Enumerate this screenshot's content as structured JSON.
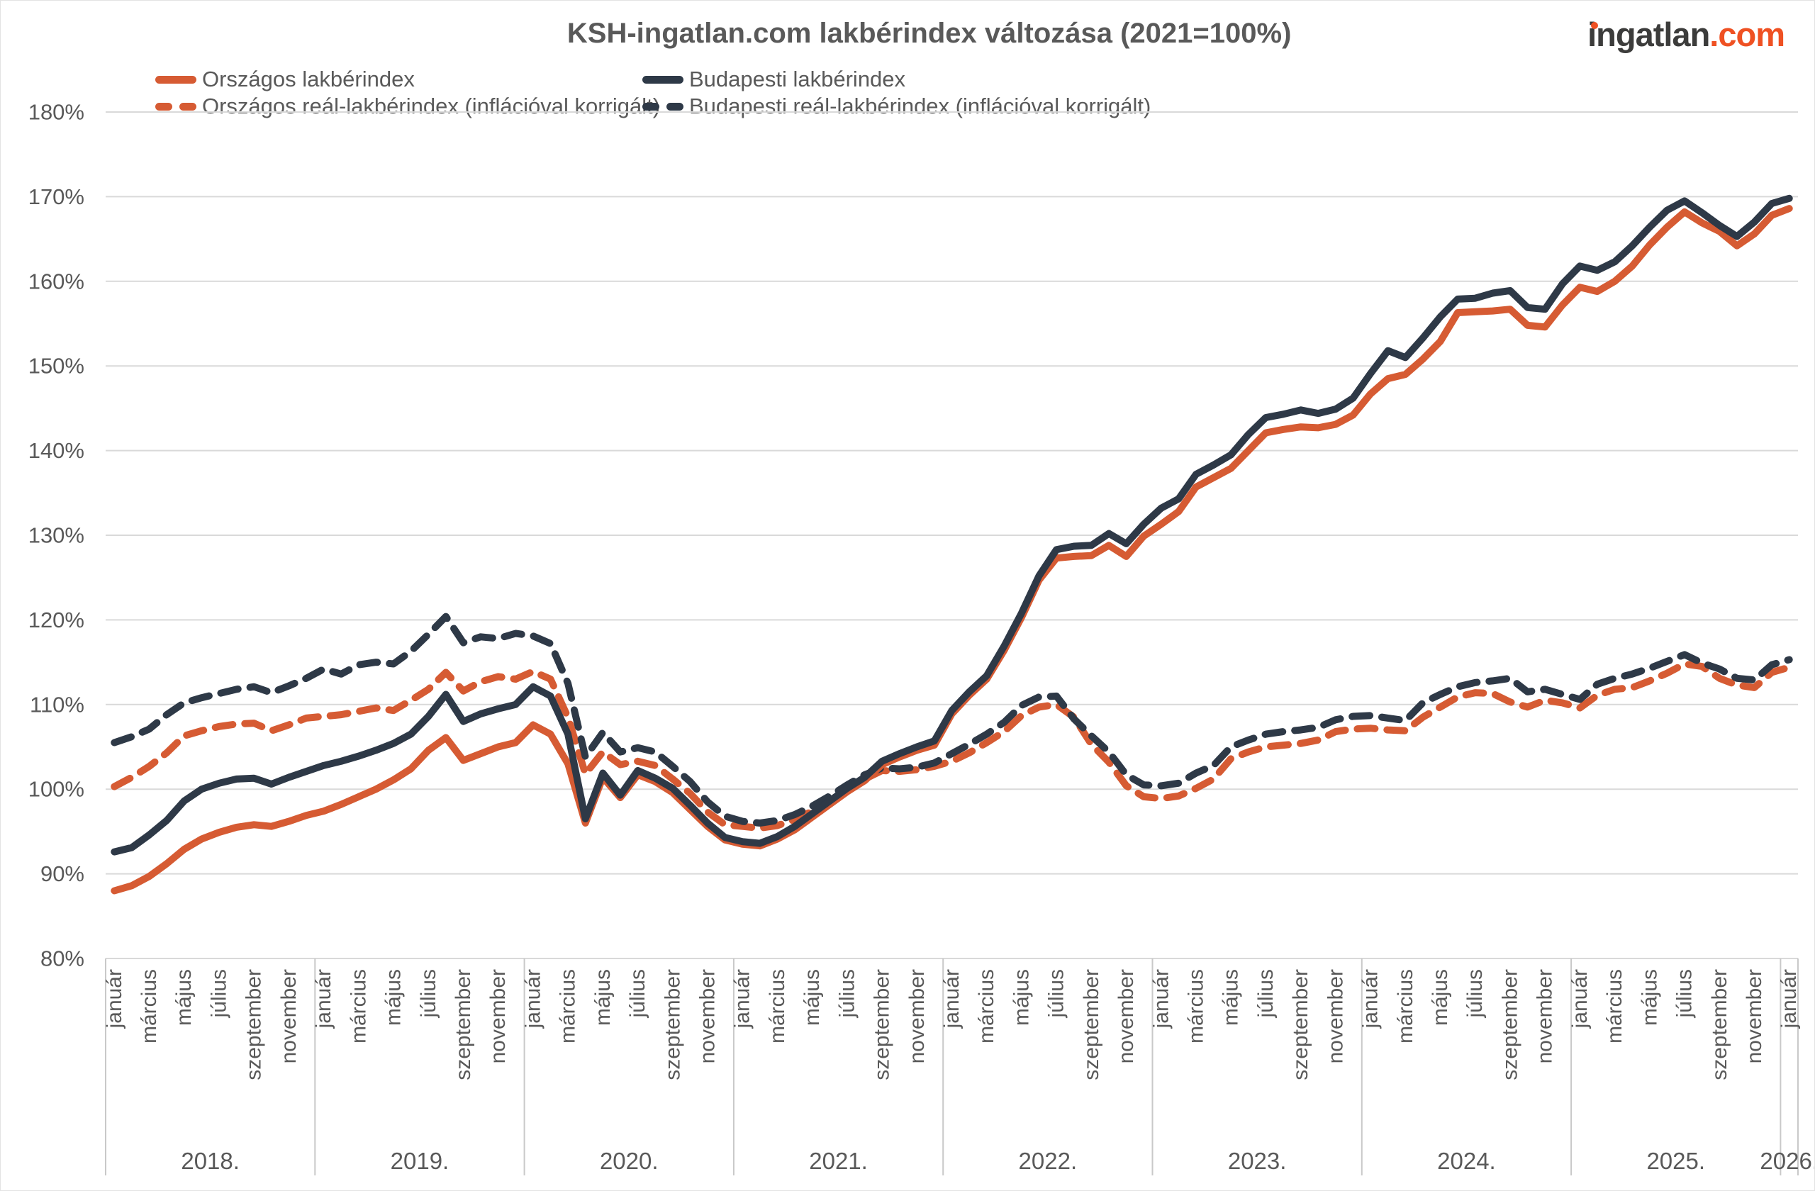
{
  "logo": {
    "name": "ingatlan",
    "tld": ".com"
  },
  "colors": {
    "orange": "#d65b33",
    "navy": "#2e3947",
    "logo_dark": "#3c3c3b",
    "logo_orange": "#ef5123",
    "grid": "#d9d9d9",
    "separator": "#c9c9c9",
    "axis_text": "#595959"
  },
  "legend": [
    {
      "id": "orszagos",
      "label": "Országos lakbérindex",
      "color": "orange",
      "dashed": false
    },
    {
      "id": "orszagos-real",
      "label": "Országos reál-lakbérindex (inflációval korrigált)",
      "color": "orange",
      "dashed": true
    },
    {
      "id": "budapesti",
      "label": "Budapesti lakbérindex",
      "color": "navy",
      "dashed": false
    },
    {
      "id": "budapesti-real",
      "label": "Budapesti reál-lakbérindex (inflációval korrigált)",
      "color": "navy",
      "dashed": true
    }
  ],
  "chart_data": {
    "type": "line",
    "title": "KSH-ingatlan.com lakbérindex változása (2021=100%)",
    "x_start": "2018-01",
    "x_end": "2026-01",
    "n_months": 97,
    "ylim": [
      80,
      180
    ],
    "y_ticks": [
      {
        "value": 180,
        "label": "180%"
      },
      {
        "value": 170,
        "label": "170%"
      },
      {
        "value": 160,
        "label": "160%"
      },
      {
        "value": 150,
        "label": "150%"
      },
      {
        "value": 140,
        "label": "140%"
      },
      {
        "value": 130,
        "label": "130%"
      },
      {
        "value": 120,
        "label": "120%"
      },
      {
        "value": 110,
        "label": "110%"
      },
      {
        "value": 100,
        "label": "100%"
      },
      {
        "value": 90,
        "label": "90%"
      },
      {
        "value": 80,
        "label": "80%"
      }
    ],
    "year_labels": [
      "2018.",
      "2019.",
      "2020.",
      "2021.",
      "2022.",
      "2023.",
      "2024.",
      "2025.",
      "2026."
    ],
    "month_tick_labels": [
      "január",
      "március",
      "május",
      "július",
      "szeptember",
      "november"
    ],
    "month_tick_offsets": [
      0,
      2,
      4,
      6,
      8,
      10
    ],
    "grid": true,
    "legend_position": "top",
    "series": [
      {
        "name": "Országos reál-lakbérindex (inflációval korrigált)",
        "color": "orange",
        "dashed": true,
        "values": [
          100.3,
          101.4,
          102.7,
          104.3,
          106.3,
          106.9,
          107.4,
          107.7,
          107.8,
          106.9,
          107.6,
          108.4,
          108.6,
          108.8,
          109.2,
          109.6,
          109.3,
          110.5,
          111.8,
          113.8,
          111.6,
          112.7,
          113.3,
          113.0,
          113.9,
          113.0,
          108.5,
          101.8,
          104.4,
          102.9,
          103.3,
          102.8,
          101.2,
          99.5,
          97.3,
          95.8,
          95.6,
          95.4,
          95.7,
          96.4,
          97.4,
          98.6,
          99.9,
          101.2,
          102.2,
          102.1,
          102.3,
          102.7,
          103.3,
          104.3,
          105.5,
          106.8,
          108.7,
          109.7,
          110.0,
          108.5,
          105.3,
          103.2,
          100.4,
          99.1,
          98.9,
          99.2,
          100.1,
          101.2,
          103.6,
          104.4,
          105.0,
          105.2,
          105.4,
          105.8,
          106.8,
          107.1,
          107.2,
          107.0,
          106.9,
          108.5,
          109.7,
          110.9,
          111.4,
          111.3,
          110.3,
          109.7,
          110.5,
          110.2,
          109.6,
          111.1,
          111.8,
          112.0,
          112.8,
          113.7,
          114.8,
          114.5,
          113.1,
          112.3,
          112.0,
          113.8,
          114.4
        ]
      },
      {
        "name": "Budapesti reál-lakbérindex (inflációval korrigált)",
        "color": "navy",
        "dashed": true,
        "values": [
          105.5,
          106.2,
          107.1,
          108.8,
          110.2,
          110.8,
          111.3,
          111.8,
          112.1,
          111.4,
          112.2,
          113.1,
          114.2,
          113.6,
          114.7,
          115.0,
          114.8,
          116.3,
          118.3,
          120.4,
          117.3,
          118.0,
          117.8,
          118.4,
          118.1,
          117.2,
          112.5,
          103.8,
          106.7,
          104.4,
          104.9,
          104.4,
          102.7,
          100.9,
          98.5,
          96.8,
          96.2,
          96.0,
          96.3,
          97.0,
          98.0,
          99.2,
          100.5,
          101.7,
          102.5,
          102.4,
          102.6,
          103.1,
          104.2,
          105.3,
          106.5,
          107.9,
          109.9,
          110.9,
          111.0,
          108.3,
          106.3,
          104.4,
          101.7,
          100.5,
          100.4,
          100.7,
          101.9,
          102.8,
          105.0,
          105.8,
          106.5,
          106.8,
          107.0,
          107.3,
          108.2,
          108.6,
          108.7,
          108.4,
          108.1,
          110.2,
          111.2,
          112.1,
          112.6,
          112.8,
          113.1,
          111.5,
          111.8,
          111.2,
          110.6,
          112.4,
          113.1,
          113.6,
          114.3,
          115.1,
          115.9,
          114.9,
          114.2,
          113.1,
          112.9,
          114.7,
          115.3
        ]
      },
      {
        "name": "Országos lakbérindex",
        "color": "orange",
        "dashed": false,
        "values": [
          88.0,
          88.6,
          89.7,
          91.2,
          92.9,
          94.1,
          94.9,
          95.5,
          95.8,
          95.6,
          96.2,
          96.9,
          97.4,
          98.2,
          99.1,
          100.0,
          101.1,
          102.4,
          104.6,
          106.1,
          103.4,
          104.2,
          105.0,
          105.5,
          107.6,
          106.5,
          103.0,
          96.0,
          101.4,
          99.0,
          101.7,
          100.9,
          99.6,
          97.6,
          95.6,
          94.0,
          93.5,
          93.3,
          94.1,
          95.2,
          96.7,
          98.2,
          99.7,
          101.0,
          102.9,
          103.8,
          104.6,
          105.2,
          108.9,
          111.1,
          113.0,
          116.4,
          120.3,
          124.7,
          127.3,
          127.5,
          127.6,
          128.8,
          127.5,
          129.9,
          131.3,
          132.8,
          135.7,
          136.8,
          137.9,
          140.0,
          142.1,
          142.5,
          142.8,
          142.7,
          143.1,
          144.2,
          146.7,
          148.5,
          149.0,
          150.8,
          152.9,
          156.3,
          156.4,
          156.5,
          156.7,
          154.8,
          154.6,
          157.2,
          159.3,
          158.8,
          160.0,
          161.8,
          164.3,
          166.4,
          168.2,
          166.9,
          165.9,
          164.2,
          165.6,
          167.8,
          168.6
        ]
      },
      {
        "name": "Budapesti lakbérindex",
        "color": "navy",
        "dashed": false,
        "values": [
          92.6,
          93.1,
          94.6,
          96.3,
          98.6,
          100.0,
          100.7,
          101.2,
          101.3,
          100.6,
          101.4,
          102.1,
          102.8,
          103.3,
          103.9,
          104.6,
          105.4,
          106.5,
          108.6,
          111.2,
          108.0,
          108.9,
          109.5,
          110.0,
          112.1,
          111.0,
          106.5,
          96.5,
          101.9,
          99.3,
          102.2,
          101.3,
          100.1,
          98.1,
          96.0,
          94.3,
          93.8,
          93.6,
          94.4,
          95.6,
          97.1,
          98.6,
          100.1,
          101.4,
          103.3,
          104.2,
          105.0,
          105.7,
          109.3,
          111.5,
          113.4,
          116.9,
          120.8,
          125.2,
          128.3,
          128.7,
          128.8,
          130.2,
          129.0,
          131.3,
          133.2,
          134.3,
          137.2,
          138.3,
          139.5,
          141.9,
          143.9,
          144.3,
          144.8,
          144.4,
          144.9,
          146.2,
          149.1,
          151.8,
          151.0,
          153.3,
          155.8,
          157.9,
          158.0,
          158.6,
          158.9,
          156.9,
          156.7,
          159.7,
          161.8,
          161.3,
          162.3,
          164.2,
          166.4,
          168.4,
          169.5,
          168.1,
          166.6,
          165.3,
          167.0,
          169.2,
          169.8
        ]
      }
    ]
  }
}
